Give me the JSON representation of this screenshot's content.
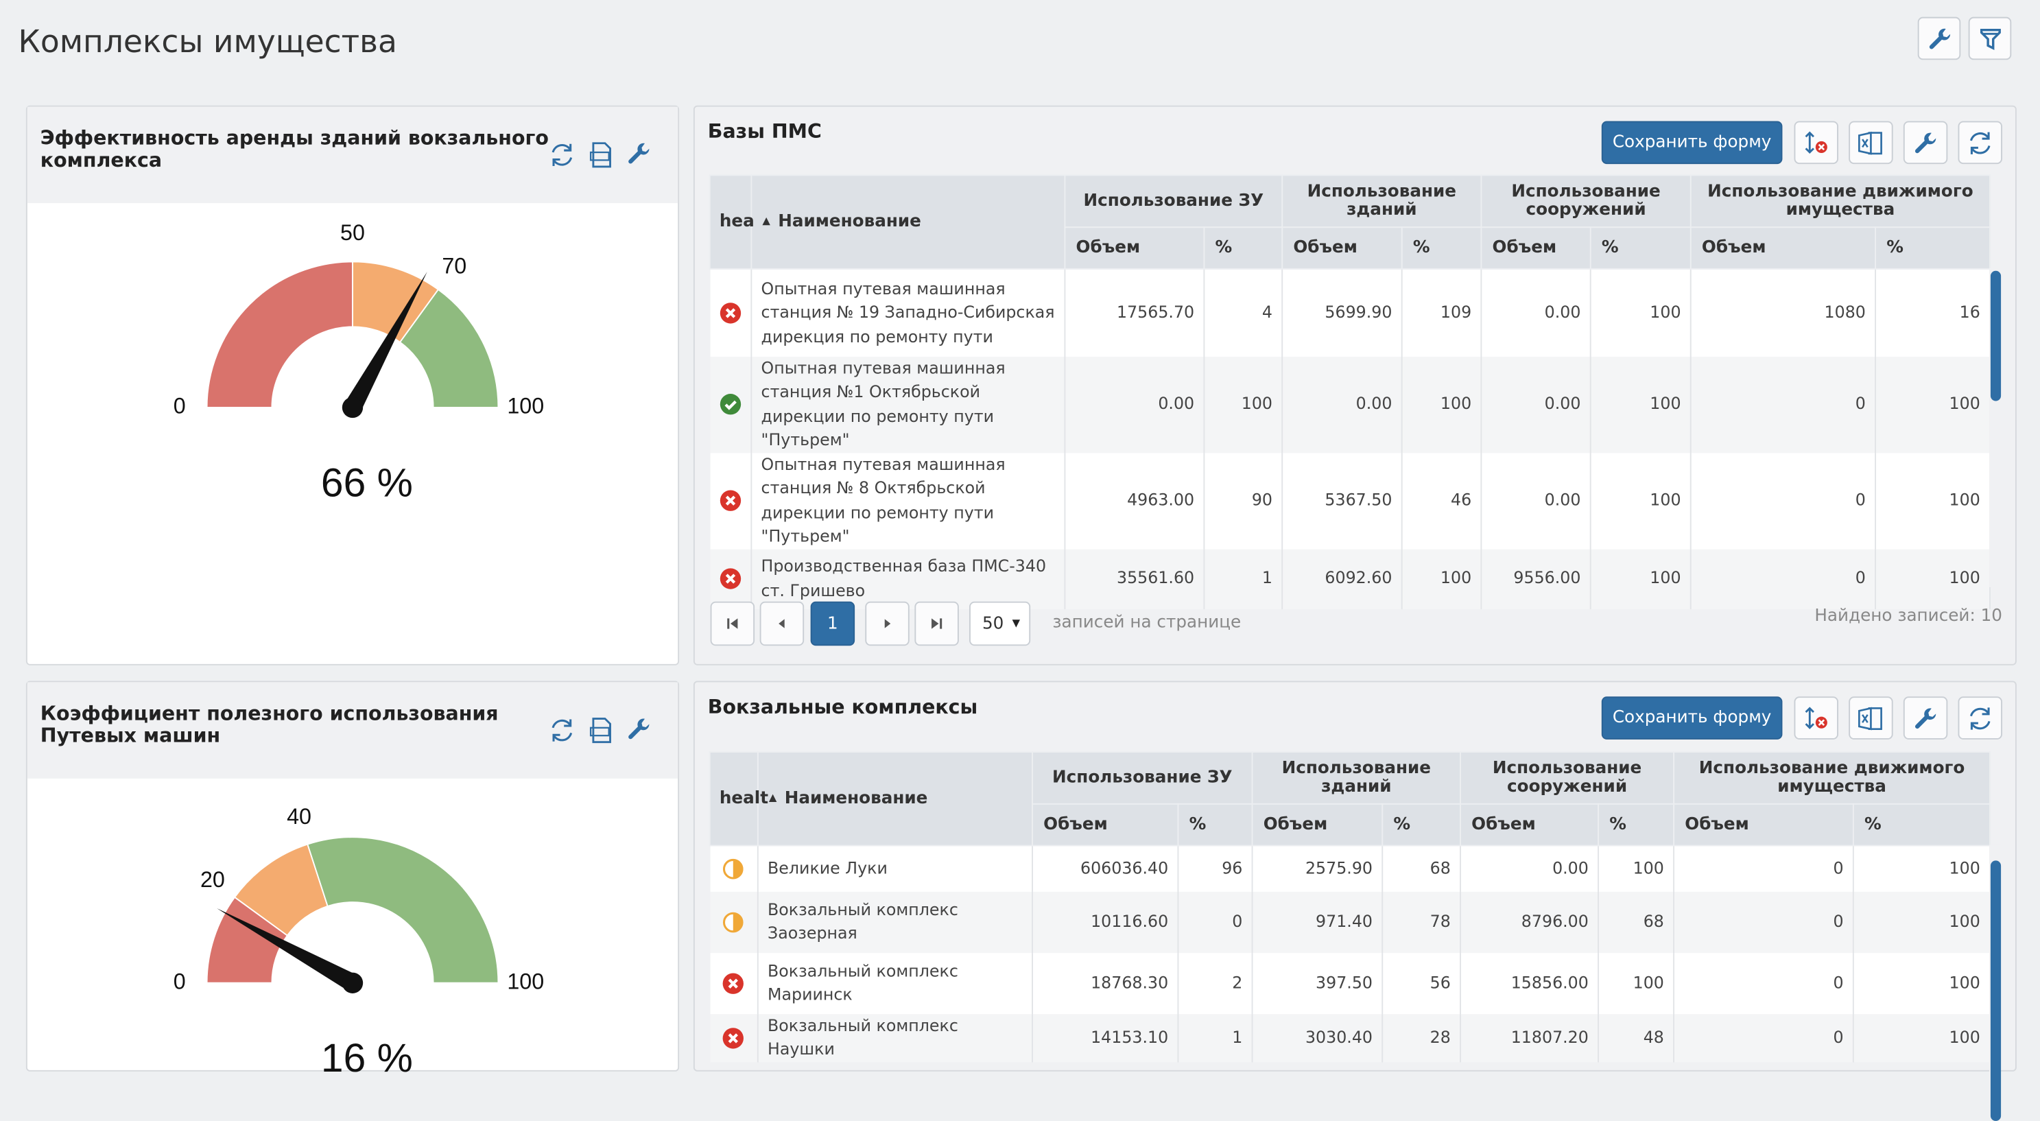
{
  "page_title": "Комплексы имущества",
  "gauges": [
    {
      "title": "Эффективность аренды зданий вокзального комплекса",
      "min": 0,
      "max": 100,
      "value": 66,
      "value_label": "66 %",
      "bands": [
        {
          "from": 0,
          "to": 50,
          "color": "#d9736c"
        },
        {
          "from": 50,
          "to": 70,
          "color": "#f4ab6f"
        },
        {
          "from": 70,
          "to": 100,
          "color": "#8fbb7f"
        }
      ],
      "ticks": [
        0,
        50,
        70,
        100
      ]
    },
    {
      "title": "Коэффициент полезного использования Путевых машин",
      "min": 0,
      "max": 100,
      "value": 16,
      "value_label": "16 %",
      "bands": [
        {
          "from": 0,
          "to": 20,
          "color": "#d9736c"
        },
        {
          "from": 20,
          "to": 40,
          "color": "#f4ab6f"
        },
        {
          "from": 40,
          "to": 100,
          "color": "#8fbb7f"
        }
      ],
      "ticks": [
        0,
        20,
        40,
        100
      ]
    }
  ],
  "tables": [
    {
      "title": "Базы ПМС",
      "save_button": "Сохранить форму",
      "health_header": "hea",
      "name_header": "Наименование",
      "groups": [
        "Использование ЗУ",
        "Использование зданий",
        "Использование сооружений",
        "Использование движимого имущества"
      ],
      "subheaders": [
        "Объем",
        "%",
        "Объем",
        "%",
        "Объем",
        "%",
        "Объем",
        "%"
      ],
      "rows": [
        {
          "status": "error",
          "name": "Опытная путевая машинная станция № 19 Западно-Сибирская дирекция по ремонту пути",
          "cells": [
            "17565.70",
            "4",
            "5699.90",
            "109",
            "0.00",
            "100",
            "1080",
            "16"
          ]
        },
        {
          "status": "ok",
          "name": "Опытная путевая машинная станция №1 Октябрьской дирекции по ремонту пути \"Путьрем\"",
          "cells": [
            "0.00",
            "100",
            "0.00",
            "100",
            "0.00",
            "100",
            "0",
            "100"
          ]
        },
        {
          "status": "error",
          "name": "Опытная путевая машинная станция № 8 Октябрьской дирекции по ремонту пути \"Путьрем\"",
          "cells": [
            "4963.00",
            "90",
            "5367.50",
            "46",
            "0.00",
            "100",
            "0",
            "100"
          ]
        },
        {
          "status": "error",
          "name": "Производственная база ПМС-340 ст. Гришево",
          "cells": [
            "35561.60",
            "1",
            "6092.60",
            "100",
            "9556.00",
            "100",
            "0",
            "100"
          ]
        }
      ],
      "pagination": {
        "page": "1",
        "page_size": "50",
        "page_size_label": "записей на странице",
        "found": "Найдено записей: 10"
      }
    },
    {
      "title": "Вокзальные комплексы",
      "save_button": "Сохранить форму",
      "health_header": "healt",
      "name_header": "Наименование",
      "groups": [
        "Использование ЗУ",
        "Использование зданий",
        "Использование сооружений",
        "Использование движимого имущества"
      ],
      "subheaders": [
        "Объем",
        "%",
        "Объем",
        "%",
        "Объем",
        "%",
        "Объем",
        "%"
      ],
      "rows": [
        {
          "status": "warning",
          "name": "Великие Луки",
          "cells": [
            "606036.40",
            "96",
            "2575.90",
            "68",
            "0.00",
            "100",
            "0",
            "100"
          ]
        },
        {
          "status": "warning",
          "name": "Вокзальный комплекс Заозерная",
          "cells": [
            "10116.60",
            "0",
            "971.40",
            "78",
            "8796.00",
            "68",
            "0",
            "100"
          ]
        },
        {
          "status": "error",
          "name": "Вокзальный комплекс Мариинск",
          "cells": [
            "18768.30",
            "2",
            "397.50",
            "56",
            "15856.00",
            "100",
            "0",
            "100"
          ]
        },
        {
          "status": "error",
          "name": "Вокзальный комплекс Наушки",
          "cells": [
            "14153.10",
            "1",
            "3030.40",
            "28",
            "11807.20",
            "48",
            "0",
            "100"
          ]
        }
      ]
    }
  ]
}
